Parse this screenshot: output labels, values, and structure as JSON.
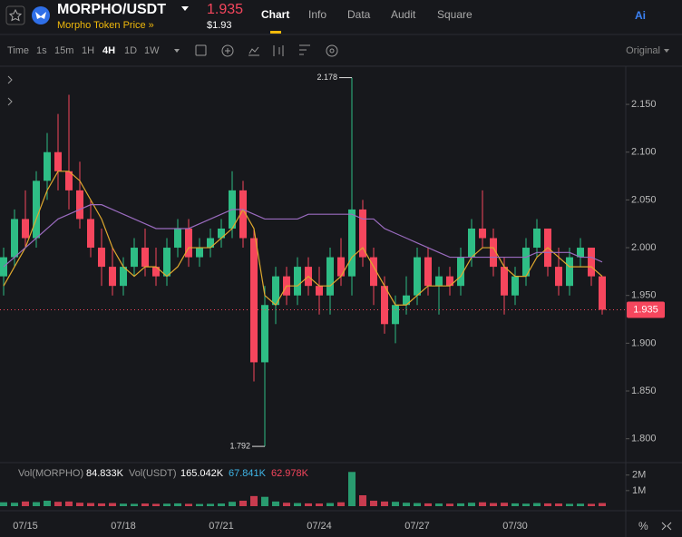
{
  "header": {
    "pair": "MORPHO/USDT",
    "subtitle": "Morpho Token Price »",
    "price": "1.935",
    "price_usd": "$1.93",
    "tabs": [
      "Chart",
      "Info",
      "Data",
      "Audit",
      "Square"
    ],
    "ai": "Ai"
  },
  "toolbar": {
    "intervals": [
      "Time",
      "1s",
      "15m",
      "1H",
      "4H",
      "1D",
      "1W"
    ],
    "mode": "Original"
  },
  "chart_data": {
    "type": "candlestick",
    "categories": [
      null,
      null,
      "07/15",
      null,
      null,
      null,
      null,
      null,
      null,
      null,
      null,
      "07/18",
      null,
      null,
      null,
      null,
      null,
      null,
      null,
      null,
      "07/21",
      null,
      null,
      null,
      null,
      null,
      null,
      null,
      null,
      "07/24",
      null,
      null,
      null,
      null,
      null,
      null,
      null,
      null,
      "07/27",
      null,
      null,
      null,
      null,
      null,
      null,
      null,
      null,
      "07/30",
      null,
      null,
      null,
      null,
      null,
      null,
      null,
      null
    ],
    "open": [
      1.97,
      1.99,
      2.03,
      2.01,
      2.07,
      2.1,
      2.08,
      2.06,
      2.03,
      2.0,
      1.98,
      1.96,
      1.98,
      2.0,
      1.98,
      1.97,
      2.0,
      2.02,
      1.99,
      2.0,
      2.01,
      2.02,
      2.06,
      2.01,
      1.88,
      1.94,
      1.97,
      1.95,
      1.98,
      1.96,
      1.95,
      1.99,
      1.97,
      2.04,
      1.99,
      1.96,
      1.92,
      1.94,
      1.95,
      1.99,
      1.96,
      1.97,
      1.96,
      1.99,
      2.02,
      2.01,
      1.98,
      1.95,
      1.97,
      2.0,
      2.02,
      1.98,
      1.96,
      1.99,
      2.0,
      1.97
    ],
    "high": [
      2.0,
      2.04,
      2.06,
      2.08,
      2.12,
      2.14,
      2.16,
      2.09,
      2.05,
      2.02,
      2.0,
      1.99,
      2.01,
      2.02,
      2.0,
      2.01,
      2.03,
      2.03,
      2.01,
      2.02,
      2.03,
      2.08,
      2.07,
      2.02,
      1.96,
      1.98,
      1.98,
      1.99,
      1.99,
      1.98,
      2.0,
      2.01,
      2.178,
      2.05,
      2.0,
      1.97,
      1.95,
      1.97,
      2.0,
      2.0,
      1.98,
      1.98,
      2.0,
      2.03,
      2.06,
      2.02,
      1.99,
      1.98,
      2.01,
      2.03,
      2.02,
      2.0,
      2.0,
      2.01,
      2.0,
      1.97
    ],
    "low": [
      1.95,
      1.98,
      2.0,
      2.0,
      2.05,
      2.06,
      2.04,
      2.02,
      1.99,
      1.96,
      1.95,
      1.95,
      1.97,
      1.97,
      1.96,
      1.96,
      1.99,
      1.98,
      1.98,
      1.99,
      2.0,
      2.01,
      2.0,
      1.86,
      1.792,
      1.92,
      1.94,
      1.94,
      1.95,
      1.93,
      1.93,
      1.96,
      1.95,
      1.98,
      1.94,
      1.91,
      1.9,
      1.93,
      1.94,
      1.95,
      1.93,
      1.95,
      1.95,
      1.98,
      2.0,
      1.97,
      1.93,
      1.94,
      1.96,
      1.99,
      1.97,
      1.95,
      1.95,
      1.98,
      1.96,
      1.93
    ],
    "close": [
      1.99,
      2.03,
      2.01,
      2.07,
      2.1,
      2.08,
      2.06,
      2.03,
      2.0,
      1.98,
      1.96,
      1.98,
      2.0,
      1.98,
      1.97,
      2.0,
      2.02,
      1.99,
      2.0,
      2.01,
      2.02,
      2.06,
      2.01,
      1.88,
      1.94,
      1.97,
      1.95,
      1.98,
      1.96,
      1.95,
      1.99,
      1.97,
      2.04,
      1.99,
      1.96,
      1.92,
      1.94,
      1.95,
      1.99,
      1.96,
      1.97,
      1.96,
      1.99,
      2.02,
      2.01,
      1.98,
      1.95,
      1.97,
      2.0,
      2.02,
      1.98,
      1.96,
      1.99,
      2.0,
      1.97,
      1.935
    ],
    "up_color": "#2ebd85",
    "down_color": "#f6465d",
    "lines": [
      {
        "color": "#e0a92e",
        "values": [
          1.96,
          1.98,
          2.0,
          2.03,
          2.06,
          2.08,
          2.08,
          2.07,
          2.05,
          2.03,
          2.0,
          1.98,
          1.97,
          1.98,
          1.98,
          1.97,
          1.98,
          2.0,
          2.0,
          2.0,
          2.01,
          2.02,
          2.04,
          2.02,
          1.95,
          1.94,
          1.96,
          1.96,
          1.97,
          1.96,
          1.96,
          1.97,
          1.99,
          2.0,
          1.98,
          1.96,
          1.94,
          1.94,
          1.95,
          1.96,
          1.96,
          1.96,
          1.97,
          1.99,
          2.0,
          2.0,
          1.98,
          1.97,
          1.97,
          1.99,
          2.0,
          1.99,
          1.98,
          1.98,
          1.98,
          1.97
        ]
      },
      {
        "color": "#9a6bbf",
        "values": [
          1.98,
          1.99,
          2.0,
          2.01,
          2.02,
          2.03,
          2.035,
          2.04,
          2.045,
          2.045,
          2.04,
          2.035,
          2.03,
          2.025,
          2.02,
          2.02,
          2.02,
          2.02,
          2.025,
          2.03,
          2.035,
          2.04,
          2.04,
          2.035,
          2.03,
          2.03,
          2.03,
          2.03,
          2.035,
          2.035,
          2.035,
          2.035,
          2.035,
          2.03,
          2.03,
          2.02,
          2.015,
          2.01,
          2.005,
          2.0,
          1.995,
          1.99,
          1.99,
          1.99,
          1.99,
          1.99,
          1.99,
          1.99,
          1.99,
          1.995,
          1.995,
          1.995,
          1.995,
          1.99,
          1.99,
          1.985
        ]
      }
    ],
    "ylim": [
      1.775,
      2.189
    ],
    "yticks": [
      {
        "value": 1.8,
        "label": "1.800"
      },
      {
        "value": 1.85,
        "label": "1.850"
      },
      {
        "value": 1.9,
        "label": "1.900"
      },
      {
        "value": 1.95,
        "label": "1.950"
      },
      {
        "value": 2.0,
        "label": "2.000"
      },
      {
        "value": 2.05,
        "label": "2.050"
      },
      {
        "value": 2.1,
        "label": "2.100"
      },
      {
        "value": 2.15,
        "label": "2.150"
      }
    ],
    "last_price": 1.935,
    "volume": {
      "legend": [
        "Vol(MORPHO)",
        "84.833K",
        "Vol(USDT)",
        "165.042K",
        "67.841K",
        "62.978K"
      ],
      "values": [
        250000,
        220000,
        300000,
        260000,
        350000,
        280000,
        300000,
        220000,
        200000,
        180000,
        200000,
        160000,
        150000,
        170000,
        150000,
        160000,
        180000,
        150000,
        140000,
        150000,
        170000,
        280000,
        350000,
        650000,
        600000,
        300000,
        220000,
        200000,
        180000,
        170000,
        200000,
        250000,
        2200000,
        700000,
        350000,
        300000,
        280000,
        220000,
        200000,
        180000,
        170000,
        160000,
        180000,
        220000,
        250000,
        200000,
        220000,
        180000,
        160000,
        200000,
        180000,
        170000,
        150000,
        160000,
        150000,
        200000
      ],
      "ylim": [
        0,
        2100000
      ],
      "yticks": [
        {
          "value": 1000000,
          "label": "1M"
        },
        {
          "value": 2000000,
          "label": "2M"
        }
      ]
    }
  }
}
